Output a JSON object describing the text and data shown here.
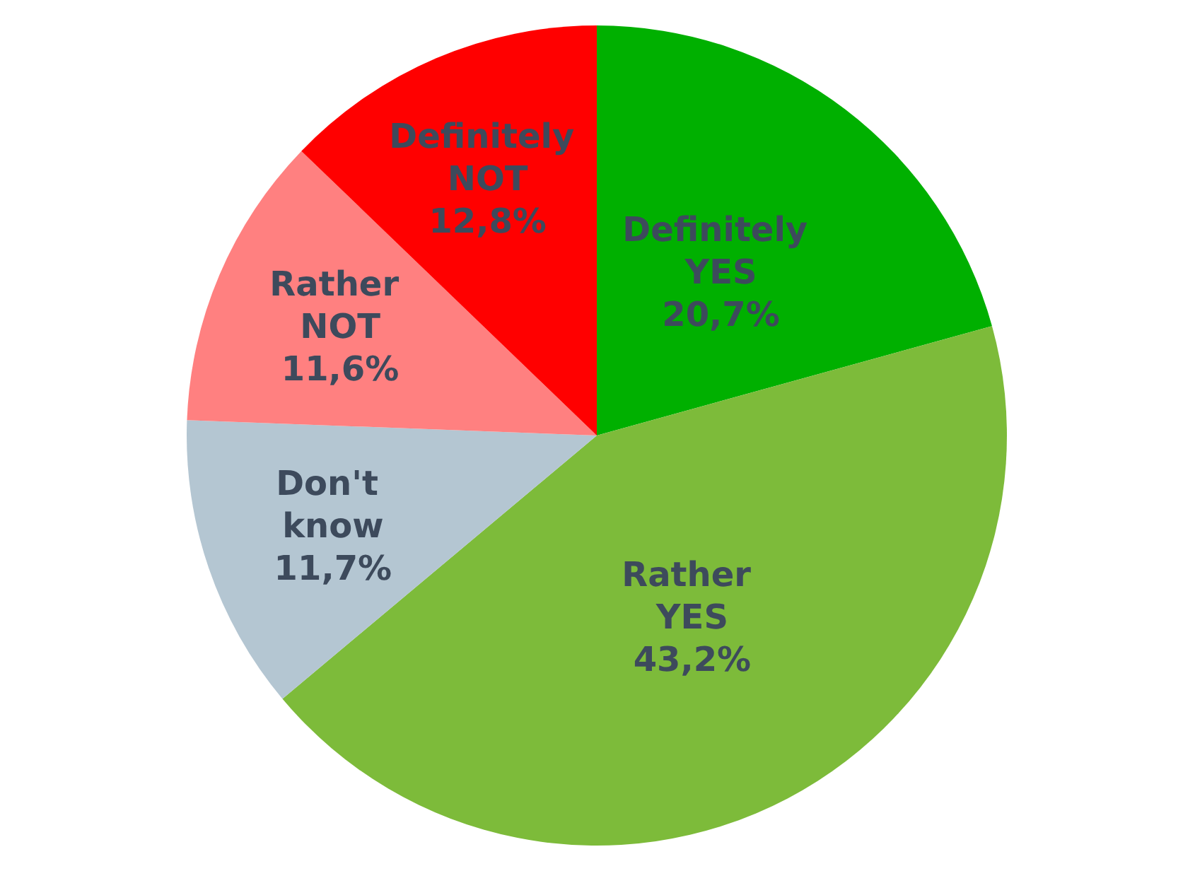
{
  "chart_data": {
    "type": "pie",
    "categories": [
      "Definitely YES",
      "Rather YES",
      "Don't know",
      "Rather NOT",
      "Definitely NOT"
    ],
    "values": [
      20.7,
      43.2,
      11.7,
      11.6,
      12.8
    ],
    "colors": [
      "#00b000",
      "#7dbb3a",
      "#b4c6d2",
      "#ff8080",
      "#ff0000"
    ],
    "value_labels": [
      "20,7%",
      "43,2%",
      "11,7%",
      "11,6%",
      "12,8%"
    ],
    "legend": false
  }
}
